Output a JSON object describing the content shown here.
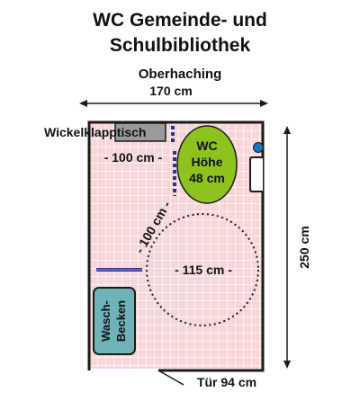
{
  "header": {
    "title_line1": "WC Gemeinde- und",
    "title_line2": "Schulbibliothek",
    "subtitle": "Oberhaching"
  },
  "dimensions": {
    "width": "170 cm",
    "depth": "250 cm",
    "door": "Tür 94 cm",
    "wc_clearance": "- 100 cm -",
    "diagonal": "- 100 cm -",
    "turning_circle": "- 115 cm -"
  },
  "fixtures": {
    "changing_table": "Wickelklapptisch",
    "wc_line1": "WC",
    "wc_line2": "Höhe",
    "wc_line3": "48 cm",
    "sink_line1": "Wasch-",
    "sink_line2": "Becken"
  },
  "colors": {
    "floor": "#f6d6d8",
    "grid": "#ffffff",
    "wall": "#1a1a1a",
    "wc": "#8dc21f",
    "sink": "#6fb3b8",
    "grab_bar": "#2e3192",
    "changing_table": "#9a9a9a",
    "button": "#1e73be"
  }
}
